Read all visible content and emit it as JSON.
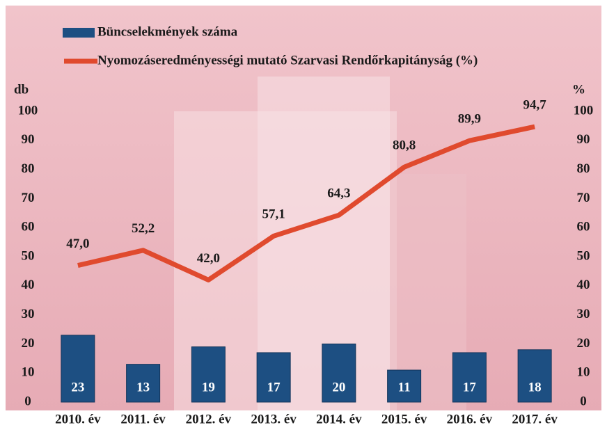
{
  "chart_data": {
    "type": "bar",
    "categories": [
      "2010. év",
      "2011. év",
      "2012. év",
      "2013. év",
      "2014. év",
      "2015. év",
      "2016. év",
      "2017. év"
    ],
    "y_label": "db",
    "y2_label": "%",
    "series": [
      {
        "name": "Büncselekmények száma",
        "type": "bar",
        "color": "#1d4f82",
        "values": [
          23,
          13,
          19,
          17,
          20,
          11,
          17,
          18
        ]
      },
      {
        "name": "Nyomozáseredményességi mutató Szarvasi Rendőrkapitányság (%)",
        "type": "line",
        "axis": "y2",
        "color": "#e04a2e",
        "values": [
          47.0,
          52.2,
          42.0,
          57.1,
          64.3,
          80.8,
          89.9,
          94.7
        ],
        "value_labels": [
          "47,0",
          "52,2",
          "42,0",
          "57,1",
          "64,3",
          "80,8",
          "89,9",
          "94,7"
        ]
      }
    ],
    "ylim": [
      0,
      100
    ],
    "yticks": [
      0,
      10,
      20,
      30,
      40,
      50,
      60,
      70,
      80,
      90,
      100
    ],
    "y2lim": [
      0,
      100
    ],
    "y2ticks": [
      0,
      10,
      20,
      30,
      40,
      50,
      60,
      70,
      80,
      90,
      100
    ],
    "legend": "top-left"
  }
}
